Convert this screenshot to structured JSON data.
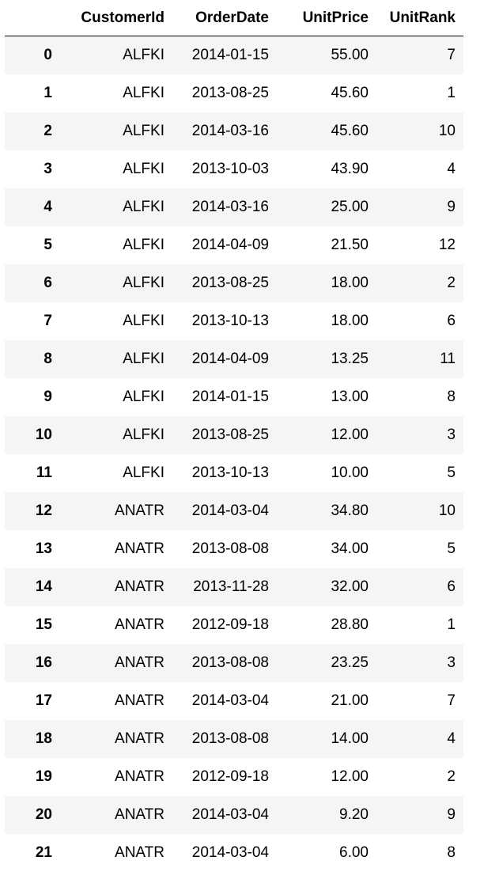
{
  "table": {
    "index_header": "",
    "columns": [
      "CustomerId",
      "OrderDate",
      "UnitPrice",
      "UnitRank"
    ],
    "rows": [
      {
        "index": "0",
        "cells": [
          "ALFKI",
          "2014-01-15",
          "55.00",
          "7"
        ]
      },
      {
        "index": "1",
        "cells": [
          "ALFKI",
          "2013-08-25",
          "45.60",
          "1"
        ]
      },
      {
        "index": "2",
        "cells": [
          "ALFKI",
          "2014-03-16",
          "45.60",
          "10"
        ]
      },
      {
        "index": "3",
        "cells": [
          "ALFKI",
          "2013-10-03",
          "43.90",
          "4"
        ]
      },
      {
        "index": "4",
        "cells": [
          "ALFKI",
          "2014-03-16",
          "25.00",
          "9"
        ]
      },
      {
        "index": "5",
        "cells": [
          "ALFKI",
          "2014-04-09",
          "21.50",
          "12"
        ]
      },
      {
        "index": "6",
        "cells": [
          "ALFKI",
          "2013-08-25",
          "18.00",
          "2"
        ]
      },
      {
        "index": "7",
        "cells": [
          "ALFKI",
          "2013-10-13",
          "18.00",
          "6"
        ]
      },
      {
        "index": "8",
        "cells": [
          "ALFKI",
          "2014-04-09",
          "13.25",
          "11"
        ]
      },
      {
        "index": "9",
        "cells": [
          "ALFKI",
          "2014-01-15",
          "13.00",
          "8"
        ]
      },
      {
        "index": "10",
        "cells": [
          "ALFKI",
          "2013-08-25",
          "12.00",
          "3"
        ]
      },
      {
        "index": "11",
        "cells": [
          "ALFKI",
          "2013-10-13",
          "10.00",
          "5"
        ]
      },
      {
        "index": "12",
        "cells": [
          "ANATR",
          "2014-03-04",
          "34.80",
          "10"
        ]
      },
      {
        "index": "13",
        "cells": [
          "ANATR",
          "2013-08-08",
          "34.00",
          "5"
        ]
      },
      {
        "index": "14",
        "cells": [
          "ANATR",
          "2013-11-28",
          "32.00",
          "6"
        ]
      },
      {
        "index": "15",
        "cells": [
          "ANATR",
          "2012-09-18",
          "28.80",
          "1"
        ]
      },
      {
        "index": "16",
        "cells": [
          "ANATR",
          "2013-08-08",
          "23.25",
          "3"
        ]
      },
      {
        "index": "17",
        "cells": [
          "ANATR",
          "2014-03-04",
          "21.00",
          "7"
        ]
      },
      {
        "index": "18",
        "cells": [
          "ANATR",
          "2013-08-08",
          "14.00",
          "4"
        ]
      },
      {
        "index": "19",
        "cells": [
          "ANATR",
          "2012-09-18",
          "12.00",
          "2"
        ]
      },
      {
        "index": "20",
        "cells": [
          "ANATR",
          "2014-03-04",
          "9.20",
          "9"
        ]
      },
      {
        "index": "21",
        "cells": [
          "ANATR",
          "2014-03-04",
          "6.00",
          "8"
        ]
      }
    ]
  }
}
